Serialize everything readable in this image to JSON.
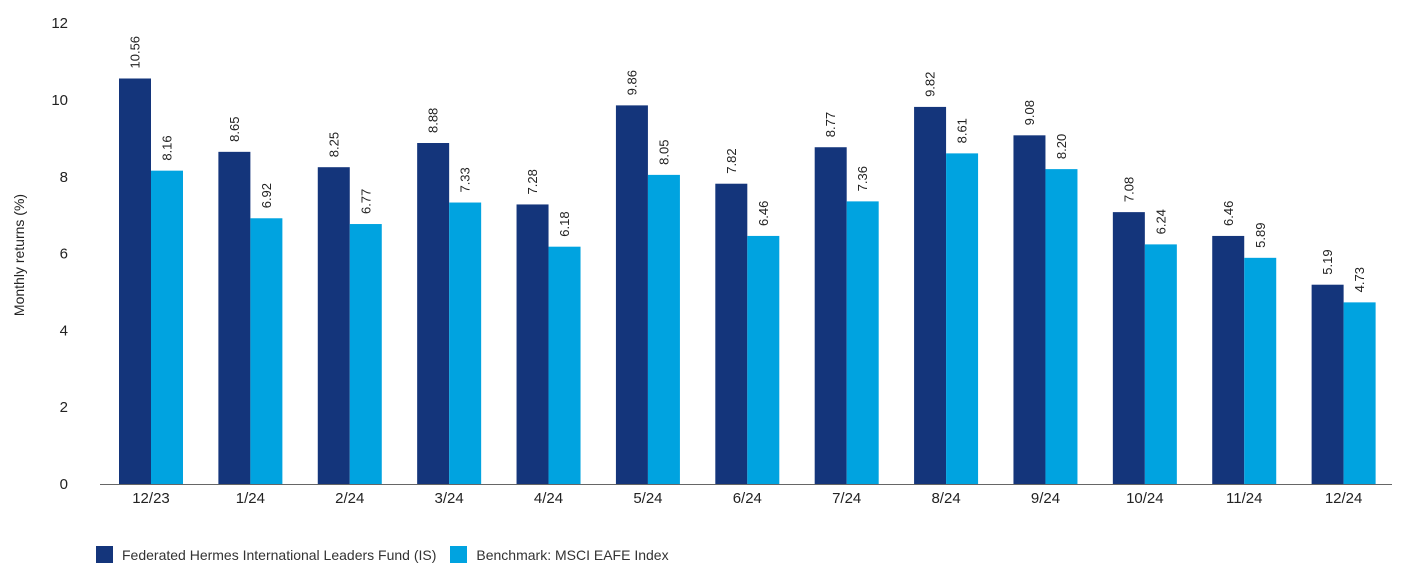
{
  "chart_data": {
    "type": "bar",
    "title": "",
    "xlabel": "",
    "ylabel": "Monthly returns (%)",
    "ylim": [
      0,
      12
    ],
    "yticks": [
      "0",
      "2",
      "4",
      "6",
      "8",
      "10",
      "12"
    ],
    "grid": false,
    "legend_position": "bottom-left",
    "categories": [
      "12/23",
      "1/24",
      "2/24",
      "3/24",
      "4/24",
      "5/24",
      "6/24",
      "7/24",
      "8/24",
      "9/24",
      "10/24",
      "11/24",
      "12/24"
    ],
    "series": [
      {
        "name": "Federated Hermes International Leaders Fund (IS)",
        "color": "#14357b",
        "values": [
          10.56,
          8.65,
          8.25,
          8.88,
          7.28,
          9.86,
          7.82,
          8.77,
          9.82,
          9.08,
          7.08,
          6.46,
          5.19
        ],
        "labels": [
          "10.56",
          "8.65",
          "8.25",
          "8.88",
          "7.28",
          "9.86",
          "7.82",
          "8.77",
          "9.82",
          "9.08",
          "7.08",
          "6.46",
          "5.19"
        ]
      },
      {
        "name": "Benchmark: MSCI EAFE Index",
        "color": "#00a3e0",
        "values": [
          8.16,
          6.92,
          6.77,
          7.33,
          6.18,
          8.05,
          6.46,
          7.36,
          8.61,
          8.2,
          6.24,
          5.89,
          4.73
        ],
        "labels": [
          "8.16",
          "6.92",
          "6.77",
          "7.33",
          "6.18",
          "8.05",
          "6.46",
          "7.36",
          "8.61",
          "8.20",
          "6.24",
          "5.89",
          "4.73"
        ]
      }
    ]
  }
}
